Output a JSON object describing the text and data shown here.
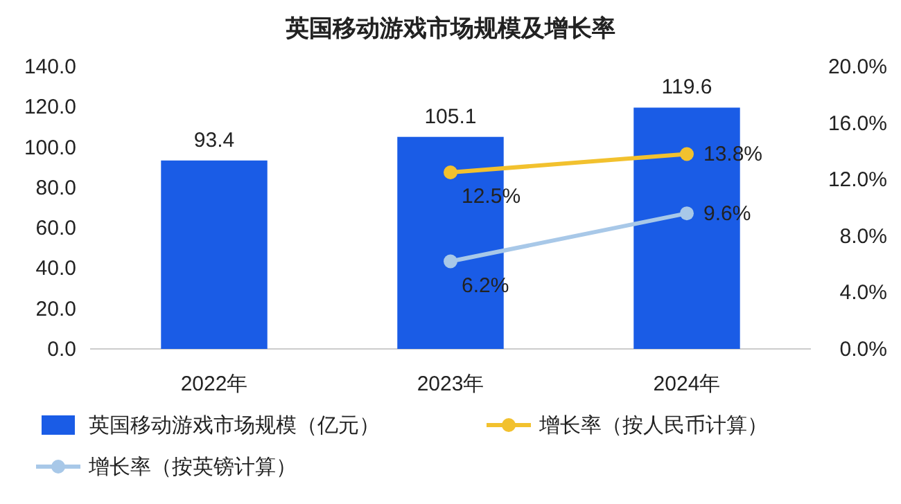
{
  "chart_data": {
    "type": "bar",
    "title": "英国移动游戏市场规模及增长率",
    "categories": [
      "2022年",
      "2023年",
      "2024年"
    ],
    "series": [
      {
        "name": "英国移动游戏市场规模（亿元）",
        "color": "#1a5ce6",
        "values": [
          93.4,
          105.1,
          119.6
        ],
        "value_labels": [
          "93.4",
          "105.1",
          "119.6"
        ]
      },
      {
        "name": "增长率（按人民币计算）",
        "type": "line",
        "axis": "y2",
        "color": "#f2c12e",
        "values": [
          null,
          12.5,
          13.8
        ],
        "value_labels": [
          null,
          "12.5%",
          "13.8%"
        ]
      },
      {
        "name": "增长率（按英镑计算）",
        "type": "line",
        "axis": "y2",
        "color": "#a8c8e8",
        "values": [
          null,
          6.2,
          9.6
        ],
        "value_labels": [
          null,
          "6.2%",
          "9.6%"
        ]
      }
    ],
    "ylim": [
      0,
      140
    ],
    "yticks": [
      {
        "value": 0,
        "label": "0.0"
      },
      {
        "value": 20,
        "label": "20.0"
      },
      {
        "value": 40,
        "label": "40.0"
      },
      {
        "value": 60,
        "label": "60.0"
      },
      {
        "value": 80,
        "label": "80.0"
      },
      {
        "value": 100,
        "label": "100.0"
      },
      {
        "value": 120,
        "label": "120.0"
      },
      {
        "value": 140,
        "label": "140.0"
      }
    ],
    "y2lim": [
      0,
      20
    ],
    "y2ticks": [
      {
        "value": 0,
        "label": "0.0%"
      },
      {
        "value": 4,
        "label": "4.0%"
      },
      {
        "value": 8,
        "label": "8.0%"
      },
      {
        "value": 12,
        "label": "12.0%"
      },
      {
        "value": 16,
        "label": "16.0%"
      },
      {
        "value": 20,
        "label": "20.0%"
      }
    ],
    "legend": "bottom",
    "marker": "circle",
    "grid": false
  }
}
